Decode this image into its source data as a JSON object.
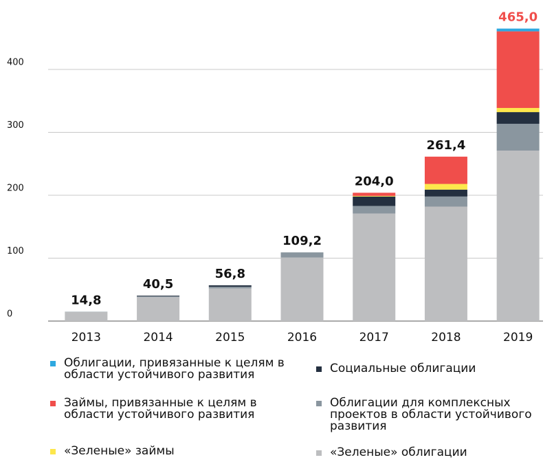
{
  "chart_data": {
    "type": "stacked_bar",
    "categories": [
      "2013",
      "2014",
      "2015",
      "2016",
      "2017",
      "2018",
      "2019"
    ],
    "series": [
      {
        "name": "«Зеленые» облигации",
        "color": "#bdbec0",
        "values": [
          14.3,
          38,
          52,
          101,
          171,
          182,
          271
        ]
      },
      {
        "name": "Облигации для комплексных проектов в области устойчивого развития",
        "color": "#8a969f",
        "values": [
          0.5,
          1.5,
          2.5,
          8.2,
          12,
          16,
          42.6
        ]
      },
      {
        "name": "Социальные облигации",
        "color": "#243040",
        "values": [
          0,
          1,
          2.3,
          0,
          15,
          11,
          18.6
        ]
      },
      {
        "name": "«Зеленые» займы",
        "color": "#fde74c",
        "values": [
          0,
          0,
          0,
          0,
          1,
          9,
          6.6
        ]
      },
      {
        "name": "Займы, привязанные к целям в области устойчивого развития",
        "color": "#f04e4b",
        "values": [
          0,
          0,
          0,
          0,
          5,
          43.4,
          121.8
        ]
      },
      {
        "name": "Облигации, привязанные к целям в области устойчивого развития",
        "color": "#2ea8e0",
        "values": [
          0,
          0,
          0,
          0,
          0,
          0,
          4.4
        ]
      }
    ],
    "totals": [
      14.8,
      40.5,
      56.8,
      109.2,
      204.0,
      261.4,
      465.0
    ],
    "value_labels": [
      "14,8",
      "40,5",
      "56,8",
      "109,2",
      "204,0",
      "261,4",
      "465,0"
    ],
    "value_label_colors": [
      "#111111",
      "#111111",
      "#111111",
      "#111111",
      "#111111",
      "#111111",
      "#f04e4b"
    ],
    "ylim": [
      0,
      470
    ],
    "yticks": [
      0,
      100,
      200,
      300,
      400
    ],
    "grid": true
  }
}
